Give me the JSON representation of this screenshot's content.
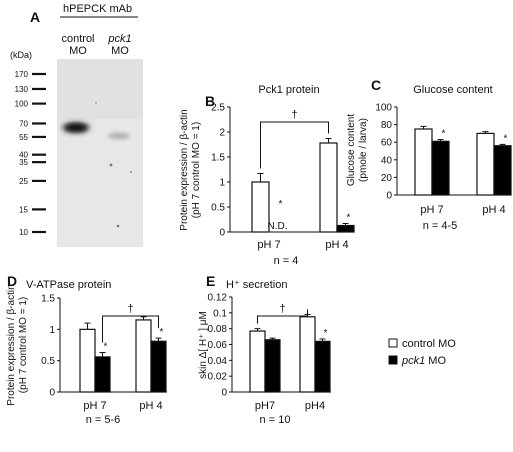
{
  "blot": {
    "panel_label": "A",
    "antibody": "hPEPCK mAb",
    "unit": "(kDa)",
    "lane_control_line1": "control",
    "lane_control_line2": "MO",
    "lane_pck1_line1": "pck1",
    "lane_pck1_line2": "MO",
    "ladder": [
      "170",
      "130",
      "100",
      "70",
      "55",
      "40",
      "35",
      "25",
      "15",
      "10"
    ],
    "ladder_kda": [
      170,
      130,
      100,
      70,
      55,
      40,
      35,
      25,
      15,
      10
    ],
    "band_control_kda": 65,
    "band_pck1_kda": 56
  },
  "legend": {
    "control_label": "control MO",
    "pck1_label_italic": "pck1",
    "pck1_label_rest": " MO",
    "control_color": "#ffffff",
    "pck1_color": "#000000"
  },
  "chart_data": [
    {
      "panel_label": "B",
      "type": "bar",
      "title": "Pck1 protein",
      "ylabel": "Protein expression / β-actin",
      "ylabel2": "(pH 7 control MO = 1)",
      "ylim": [
        0,
        2.5
      ],
      "yticks": [
        "0",
        "0.5",
        "1",
        "1.5",
        "2",
        "2.5"
      ],
      "ytick_values": [
        0,
        0.5,
        1,
        1.5,
        2,
        2.5
      ],
      "categories": [
        "pH 7",
        "pH 4"
      ],
      "series": [
        {
          "values": [
            1.0,
            1.78
          ],
          "errors": [
            0.17,
            0.09
          ],
          "marks": [
            "",
            ""
          ]
        },
        {
          "values": [
            0.0,
            0.13
          ],
          "errors": [
            0.0,
            0.04
          ],
          "marks": [
            "*",
            "*"
          ]
        }
      ],
      "nd_label": "N.D.",
      "dagger": "†",
      "n_label": "n = 4"
    },
    {
      "panel_label": "C",
      "type": "bar",
      "title": "Glucose content",
      "ylabel": "Glucose content",
      "ylabel2": "(pmole / larva)",
      "ylim": [
        0,
        100
      ],
      "yticks": [
        "0",
        "20",
        "40",
        "60",
        "80",
        "100"
      ],
      "ytick_values": [
        0,
        20,
        40,
        60,
        80,
        100
      ],
      "categories": [
        "pH 7",
        "pH 4"
      ],
      "series": [
        {
          "values": [
            75,
            70
          ],
          "errors": [
            3,
            2
          ],
          "marks": [
            "",
            ""
          ]
        },
        {
          "values": [
            61,
            56
          ],
          "errors": [
            2,
            1.5
          ],
          "marks": [
            "*",
            "*"
          ]
        }
      ],
      "n_label": "n = 4-5"
    },
    {
      "panel_label": "D",
      "type": "bar",
      "title": "V-ATPase protein",
      "ylabel": "Protein expression / β-actin",
      "ylabel2": "(pH 7 control MO = 1)",
      "ylim": [
        0,
        1.5
      ],
      "yticks": [
        "0",
        "0.5",
        "1",
        "1.5"
      ],
      "ytick_values": [
        0,
        0.5,
        1,
        1.5
      ],
      "categories": [
        "pH 7",
        "pH 4"
      ],
      "series": [
        {
          "values": [
            1.0,
            1.15
          ],
          "errors": [
            0.1,
            0.05
          ],
          "marks": [
            "",
            ""
          ]
        },
        {
          "values": [
            0.56,
            0.81
          ],
          "errors": [
            0.07,
            0.05
          ],
          "marks": [
            "*",
            "*"
          ]
        }
      ],
      "dagger": "†",
      "n_label": "n = 5-6"
    },
    {
      "panel_label": "E",
      "type": "bar",
      "title": "H⁺ secretion",
      "ylabel": "skin Δ[ H⁺ ] μM",
      "ylabel2": "",
      "ylim": [
        0,
        0.12
      ],
      "yticks": [
        "0",
        "0.02",
        "0.04",
        "0.06",
        "0.08",
        "0.1",
        "0.12"
      ],
      "ytick_values": [
        0,
        0.02,
        0.04,
        0.06,
        0.08,
        0.1,
        0.12
      ],
      "categories": [
        "pH7",
        "pH4"
      ],
      "series": [
        {
          "values": [
            0.077,
            0.095
          ],
          "errors": [
            0.003,
            0.003
          ],
          "marks": [
            "",
            ""
          ]
        },
        {
          "values": [
            0.066,
            0.064
          ],
          "errors": [
            0.002,
            0.003
          ],
          "marks": [
            "",
            "*"
          ]
        }
      ],
      "dagger": "†",
      "n_label": "n = 10"
    }
  ]
}
